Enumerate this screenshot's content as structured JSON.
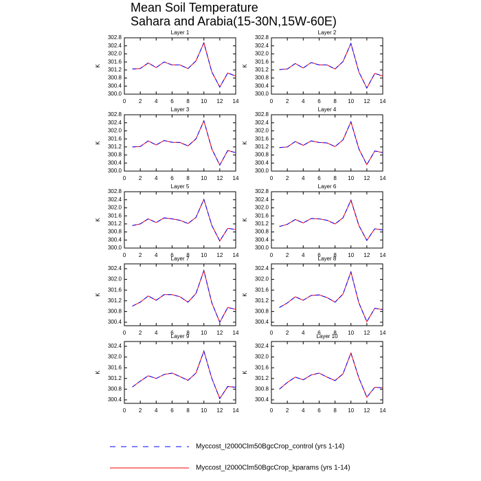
{
  "title": "Mean Soil Temperature",
  "subtitle": "Sahara and Arabia(15-30N,15W-60E)",
  "chart_data": [
    {
      "type": "line",
      "title": "Layer 1",
      "ylabel": "K",
      "x": [
        1,
        2,
        3,
        4,
        5,
        6,
        7,
        8,
        9,
        10,
        11,
        12,
        13,
        14
      ],
      "xlim": [
        0,
        14
      ],
      "xticks": [
        0,
        2,
        4,
        6,
        8,
        10,
        12,
        14
      ],
      "ylim": [
        300,
        302.8
      ],
      "yticks": [
        {
          "value": 300,
          "label": "300.0"
        },
        300.4,
        300.8,
        301.2,
        301.6,
        {
          "value": 302,
          "label": "302.0"
        },
        302.4,
        302.8
      ],
      "series": [
        {
          "name": "Myccost_I2000Clm50BgcCrop_control (yrs 1-14)",
          "color": "#0000ff",
          "line_style": "dashed",
          "values": [
            301.25,
            301.27,
            301.55,
            301.32,
            301.6,
            301.45,
            301.45,
            301.27,
            301.65,
            302.55,
            301.1,
            300.35,
            301.05,
            300.9
          ]
        },
        {
          "name": "Myccost_I2000Clm50BgcCrop_kparams (yrs 1-14)",
          "color": "#ff0000",
          "line_style": "solid",
          "values": [
            301.25,
            301.27,
            301.55,
            301.32,
            301.6,
            301.45,
            301.45,
            301.27,
            301.65,
            302.55,
            301.1,
            300.35,
            301.05,
            300.9
          ]
        }
      ]
    },
    {
      "type": "line",
      "title": "Layer 2",
      "ylabel": "K",
      "x": [
        1,
        2,
        3,
        4,
        5,
        6,
        7,
        8,
        9,
        10,
        11,
        12,
        13,
        14
      ],
      "xlim": [
        0,
        14
      ],
      "xticks": [
        0,
        2,
        4,
        6,
        8,
        10,
        12,
        14
      ],
      "ylim": [
        300,
        302.8
      ],
      "yticks": [
        {
          "value": 300,
          "label": "300.0"
        },
        300.4,
        300.8,
        301.2,
        301.6,
        {
          "value": 302,
          "label": "302.0"
        },
        302.4,
        302.8
      ],
      "series": [
        {
          "name": "Myccost_I2000Clm50BgcCrop_control (yrs 1-14)",
          "color": "#0000ff",
          "line_style": "dashed",
          "values": [
            301.22,
            301.25,
            301.52,
            301.3,
            301.57,
            301.45,
            301.45,
            301.25,
            301.62,
            302.52,
            301.1,
            300.3,
            301.03,
            300.9
          ]
        },
        {
          "name": "Myccost_I2000Clm50BgcCrop_kparams (yrs 1-14)",
          "color": "#ff0000",
          "line_style": "solid",
          "values": [
            301.22,
            301.25,
            301.52,
            301.3,
            301.57,
            301.45,
            301.45,
            301.25,
            301.62,
            302.52,
            301.1,
            300.3,
            301.03,
            300.9
          ]
        }
      ]
    },
    {
      "type": "line",
      "title": "Layer 3",
      "ylabel": "K",
      "x": [
        1,
        2,
        3,
        4,
        5,
        6,
        7,
        8,
        9,
        10,
        11,
        12,
        13,
        14
      ],
      "xlim": [
        0,
        14
      ],
      "xticks": [
        0,
        2,
        4,
        6,
        8,
        10,
        12,
        14
      ],
      "ylim": [
        300,
        302.8
      ],
      "yticks": [
        {
          "value": 300,
          "label": "300.0"
        },
        300.4,
        300.8,
        301.2,
        301.6,
        {
          "value": 302,
          "label": "302.0"
        },
        302.4,
        302.8
      ],
      "series": [
        {
          "name": "Myccost_I2000Clm50BgcCrop_control (yrs 1-14)",
          "color": "#0000ff",
          "line_style": "dashed",
          "values": [
            301.2,
            301.22,
            301.5,
            301.3,
            301.52,
            301.43,
            301.42,
            301.25,
            301.6,
            302.5,
            301.1,
            300.3,
            301.02,
            300.92
          ]
        },
        {
          "name": "Myccost_I2000Clm50BgcCrop_kparams (yrs 1-14)",
          "color": "#ff0000",
          "line_style": "solid",
          "values": [
            301.2,
            301.22,
            301.5,
            301.3,
            301.52,
            301.43,
            301.42,
            301.25,
            301.6,
            302.5,
            301.1,
            300.3,
            301.02,
            300.92
          ]
        }
      ]
    },
    {
      "type": "line",
      "title": "Layer 4",
      "ylabel": "K",
      "x": [
        1,
        2,
        3,
        4,
        5,
        6,
        7,
        8,
        9,
        10,
        11,
        12,
        13,
        14
      ],
      "xlim": [
        0,
        14
      ],
      "xticks": [
        0,
        2,
        4,
        6,
        8,
        10,
        12,
        14
      ],
      "ylim": [
        300,
        302.8
      ],
      "yticks": [
        {
          "value": 300,
          "label": "300.0"
        },
        300.4,
        300.8,
        301.2,
        301.6,
        {
          "value": 302,
          "label": "302.0"
        },
        302.4,
        302.8
      ],
      "series": [
        {
          "name": "Myccost_I2000Clm50BgcCrop_control (yrs 1-14)",
          "color": "#0000ff",
          "line_style": "dashed",
          "values": [
            301.17,
            301.2,
            301.47,
            301.28,
            301.5,
            301.42,
            301.4,
            301.22,
            301.55,
            302.45,
            301.1,
            300.32,
            301.0,
            300.92
          ]
        },
        {
          "name": "Myccost_I2000Clm50BgcCrop_kparams (yrs 1-14)",
          "color": "#ff0000",
          "line_style": "solid",
          "values": [
            301.17,
            301.2,
            301.47,
            301.28,
            301.5,
            301.42,
            301.4,
            301.22,
            301.55,
            302.45,
            301.1,
            300.32,
            301.0,
            300.92
          ]
        }
      ]
    },
    {
      "type": "line",
      "title": "Layer 5",
      "ylabel": "K",
      "x": [
        1,
        2,
        3,
        4,
        5,
        6,
        7,
        8,
        9,
        10,
        11,
        12,
        13,
        14
      ],
      "xlim": [
        0,
        14
      ],
      "xticks": [
        0,
        2,
        4,
        6,
        8,
        10,
        12,
        14
      ],
      "ylim": [
        300,
        302.8
      ],
      "yticks": [
        {
          "value": 300,
          "label": "300.0"
        },
        300.4,
        300.8,
        301.2,
        301.6,
        {
          "value": 302,
          "label": "302.0"
        },
        302.4,
        302.8
      ],
      "series": [
        {
          "name": "Myccost_I2000Clm50BgcCrop_control (yrs 1-14)",
          "color": "#0000ff",
          "line_style": "dashed",
          "values": [
            301.12,
            301.2,
            301.45,
            301.27,
            301.5,
            301.45,
            301.38,
            301.22,
            301.52,
            302.42,
            301.12,
            300.35,
            300.98,
            300.92
          ]
        },
        {
          "name": "Myccost_I2000Clm50BgcCrop_kparams (yrs 1-14)",
          "color": "#ff0000",
          "line_style": "solid",
          "values": [
            301.12,
            301.2,
            301.45,
            301.27,
            301.5,
            301.45,
            301.38,
            301.22,
            301.52,
            302.42,
            301.12,
            300.35,
            300.98,
            300.92
          ]
        }
      ]
    },
    {
      "type": "line",
      "title": "Layer 6",
      "ylabel": "K",
      "x": [
        1,
        2,
        3,
        4,
        5,
        6,
        7,
        8,
        9,
        10,
        11,
        12,
        13,
        14
      ],
      "xlim": [
        0,
        14
      ],
      "xticks": [
        0,
        2,
        4,
        6,
        8,
        10,
        12,
        14
      ],
      "ylim": [
        300,
        302.8
      ],
      "yticks": [
        {
          "value": 300,
          "label": "300.0"
        },
        300.4,
        300.8,
        301.2,
        301.6,
        {
          "value": 302,
          "label": "302.0"
        },
        302.4,
        302.8
      ],
      "series": [
        {
          "name": "Myccost_I2000Clm50BgcCrop_control (yrs 1-14)",
          "color": "#0000ff",
          "line_style": "dashed",
          "values": [
            301.07,
            301.18,
            301.42,
            301.25,
            301.47,
            301.45,
            301.38,
            301.2,
            301.5,
            302.38,
            301.12,
            300.38,
            300.96,
            300.9
          ]
        },
        {
          "name": "Myccost_I2000Clm50BgcCrop_kparams (yrs 1-14)",
          "color": "#ff0000",
          "line_style": "solid",
          "values": [
            301.07,
            301.18,
            301.42,
            301.25,
            301.47,
            301.45,
            301.38,
            301.2,
            301.5,
            302.38,
            301.12,
            300.38,
            300.96,
            300.9
          ]
        }
      ]
    },
    {
      "type": "line",
      "title": "Layer 7",
      "ylabel": "K",
      "x": [
        1,
        2,
        3,
        4,
        5,
        6,
        7,
        8,
        9,
        10,
        11,
        12,
        13,
        14
      ],
      "xlim": [
        0,
        14
      ],
      "xticks": [
        0,
        2,
        4,
        6,
        8,
        10,
        12,
        14
      ],
      "ylim": [
        300.27,
        302.58
      ],
      "yticks": [
        300.4,
        300.8,
        301.2,
        301.6,
        {
          "value": 302,
          "label": "302.0"
        },
        302.4
      ],
      "series": [
        {
          "name": "Myccost_I2000Clm50BgcCrop_control (yrs 1-14)",
          "color": "#0000ff",
          "line_style": "dashed",
          "values": [
            301.0,
            301.15,
            301.38,
            301.22,
            301.43,
            301.43,
            301.35,
            301.15,
            301.47,
            302.33,
            301.12,
            300.4,
            300.95,
            300.88
          ]
        },
        {
          "name": "Myccost_I2000Clm50BgcCrop_kparams (yrs 1-14)",
          "color": "#ff0000",
          "line_style": "solid",
          "values": [
            301.0,
            301.15,
            301.38,
            301.22,
            301.43,
            301.43,
            301.35,
            301.15,
            301.47,
            302.33,
            301.12,
            300.4,
            300.95,
            300.88
          ]
        }
      ]
    },
    {
      "type": "line",
      "title": "Layer 8",
      "ylabel": "K",
      "x": [
        1,
        2,
        3,
        4,
        5,
        6,
        7,
        8,
        9,
        10,
        11,
        12,
        13,
        14
      ],
      "xlim": [
        0,
        14
      ],
      "xticks": [
        0,
        2,
        4,
        6,
        8,
        10,
        12,
        14
      ],
      "ylim": [
        300.27,
        302.58
      ],
      "yticks": [
        300.4,
        300.8,
        301.2,
        301.6,
        {
          "value": 302,
          "label": "302.0"
        },
        302.4
      ],
      "series": [
        {
          "name": "Myccost_I2000Clm50BgcCrop_control (yrs 1-14)",
          "color": "#0000ff",
          "line_style": "dashed",
          "values": [
            300.95,
            301.12,
            301.35,
            301.22,
            301.4,
            301.42,
            301.32,
            301.15,
            301.45,
            302.28,
            301.12,
            300.42,
            300.92,
            300.87
          ]
        },
        {
          "name": "Myccost_I2000Clm50BgcCrop_kparams (yrs 1-14)",
          "color": "#ff0000",
          "line_style": "solid",
          "values": [
            300.95,
            301.12,
            301.35,
            301.22,
            301.4,
            301.42,
            301.32,
            301.15,
            301.45,
            302.28,
            301.12,
            300.42,
            300.92,
            300.87
          ]
        }
      ]
    },
    {
      "type": "line",
      "title": "Layer 9",
      "ylabel": "K",
      "x": [
        1,
        2,
        3,
        4,
        5,
        6,
        7,
        8,
        9,
        10,
        11,
        12,
        13,
        14
      ],
      "xlim": [
        0,
        14
      ],
      "xticks": [
        0,
        2,
        4,
        6,
        8,
        10,
        12,
        14
      ],
      "ylim": [
        300.27,
        302.58
      ],
      "yticks": [
        300.4,
        300.8,
        301.2,
        301.6,
        {
          "value": 302,
          "label": "302.0"
        },
        302.4
      ],
      "series": [
        {
          "name": "Myccost_I2000Clm50BgcCrop_control (yrs 1-14)",
          "color": "#0000ff",
          "line_style": "dashed",
          "values": [
            300.88,
            301.1,
            301.3,
            301.2,
            301.35,
            301.4,
            301.27,
            301.13,
            301.4,
            302.22,
            301.2,
            300.45,
            300.9,
            300.87
          ]
        },
        {
          "name": "Myccost_I2000Clm50BgcCrop_kparams (yrs 1-14)",
          "color": "#ff0000",
          "line_style": "solid",
          "values": [
            300.88,
            301.1,
            301.3,
            301.2,
            301.35,
            301.4,
            301.27,
            301.13,
            301.4,
            302.22,
            301.2,
            300.45,
            300.9,
            300.87
          ]
        }
      ]
    },
    {
      "type": "line",
      "title": "Layer 10",
      "ylabel": "K",
      "x": [
        1,
        2,
        3,
        4,
        5,
        6,
        7,
        8,
        9,
        10,
        11,
        12,
        13,
        14
      ],
      "xlim": [
        0,
        14
      ],
      "xticks": [
        0,
        2,
        4,
        6,
        8,
        10,
        12,
        14
      ],
      "ylim": [
        300.27,
        302.58
      ],
      "yticks": [
        300.4,
        300.8,
        301.2,
        301.6,
        {
          "value": 302,
          "label": "302.0"
        },
        302.4
      ],
      "series": [
        {
          "name": "Myccost_I2000Clm50BgcCrop_control (yrs 1-14)",
          "color": "#0000ff",
          "line_style": "dashed",
          "values": [
            300.8,
            301.05,
            301.25,
            301.15,
            301.33,
            301.4,
            301.25,
            301.12,
            301.37,
            302.15,
            301.22,
            300.5,
            300.87,
            300.85
          ]
        },
        {
          "name": "Myccost_I2000Clm50BgcCrop_kparams (yrs 1-14)",
          "color": "#ff0000",
          "line_style": "solid",
          "values": [
            300.8,
            301.05,
            301.25,
            301.15,
            301.33,
            301.4,
            301.25,
            301.12,
            301.37,
            302.15,
            301.22,
            300.5,
            300.87,
            300.85
          ]
        }
      ]
    }
  ]
}
